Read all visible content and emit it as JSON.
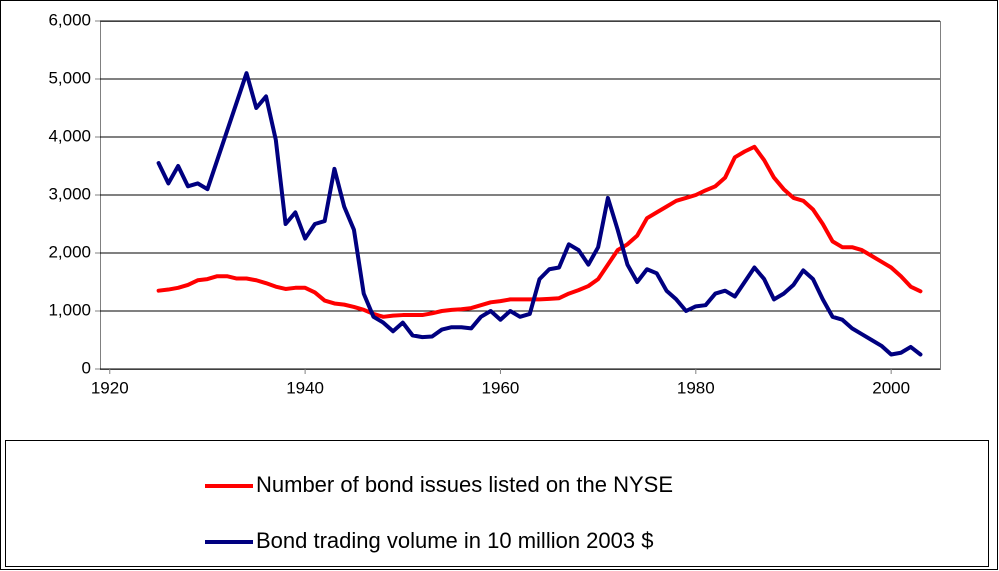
{
  "chart_data": {
    "type": "line",
    "x": [
      1925,
      1926,
      1927,
      1928,
      1929,
      1930,
      1931,
      1932,
      1933,
      1934,
      1935,
      1936,
      1937,
      1938,
      1939,
      1940,
      1941,
      1942,
      1943,
      1944,
      1945,
      1946,
      1947,
      1948,
      1949,
      1950,
      1951,
      1952,
      1953,
      1954,
      1955,
      1956,
      1957,
      1958,
      1959,
      1960,
      1961,
      1962,
      1963,
      1964,
      1965,
      1966,
      1967,
      1968,
      1969,
      1970,
      1971,
      1972,
      1973,
      1974,
      1975,
      1976,
      1977,
      1978,
      1979,
      1980,
      1981,
      1982,
      1983,
      1984,
      1985,
      1986,
      1987,
      1988,
      1989,
      1990,
      1991,
      1992,
      1993,
      1994,
      1995,
      1996,
      1997,
      1998,
      1999,
      2000,
      2001,
      2002,
      2003
    ],
    "series": [
      {
        "name": "Number of bond issues listed on the NYSE",
        "color": "#ff0000",
        "values": [
          1350,
          1370,
          1400,
          1450,
          1530,
          1550,
          1600,
          1600,
          1560,
          1560,
          1530,
          1480,
          1420,
          1380,
          1400,
          1400,
          1320,
          1180,
          1130,
          1110,
          1070,
          1020,
          950,
          900,
          920,
          930,
          930,
          930,
          960,
          1000,
          1020,
          1030,
          1050,
          1100,
          1150,
          1170,
          1200,
          1200,
          1200,
          1200,
          1210,
          1220,
          1300,
          1360,
          1430,
          1550,
          1800,
          2050,
          2150,
          2300,
          2600,
          2700,
          2800,
          2900,
          2950,
          3000,
          3080,
          3150,
          3300,
          3650,
          3750,
          3830,
          3600,
          3300,
          3100,
          2950,
          2900,
          2750,
          2500,
          2200,
          2100,
          2100,
          2050,
          1950,
          1850,
          1750,
          1600,
          1420,
          1340
        ]
      },
      {
        "name": "Bond trading volume in 10 million 2003 $",
        "color": "#000080",
        "values": [
          3550,
          3200,
          3500,
          3150,
          3200,
          3100,
          3600,
          4100,
          4600,
          5100,
          4500,
          4700,
          3950,
          2500,
          2700,
          2250,
          2500,
          2550,
          3450,
          2800,
          2400,
          1300,
          900,
          800,
          650,
          800,
          580,
          550,
          560,
          680,
          720,
          720,
          700,
          900,
          1000,
          850,
          1000,
          900,
          950,
          1550,
          1720,
          1750,
          2150,
          2050,
          1800,
          2100,
          2950,
          2400,
          1800,
          1500,
          1720,
          1650,
          1350,
          1200,
          1000,
          1080,
          1100,
          1300,
          1350,
          1250,
          1500,
          1750,
          1550,
          1200,
          1300,
          1450,
          1700,
          1550,
          1200,
          900,
          850,
          700,
          600,
          500,
          400,
          250,
          280,
          380,
          250
        ]
      }
    ],
    "xlim": [
      1919,
      2005
    ],
    "xticks": [
      1920,
      1940,
      1960,
      1980,
      2000
    ],
    "ylim": [
      0,
      6000
    ],
    "yticks": [
      0,
      {
        "value": 1000,
        "label": "1,000"
      },
      {
        "value": 2000,
        "label": "2,000"
      },
      {
        "value": 3000,
        "label": "3,000"
      },
      {
        "value": 4000,
        "label": "4,000"
      },
      {
        "value": 5000,
        "label": "5,000"
      },
      {
        "value": 6000,
        "label": "6,000"
      }
    ],
    "grid": true,
    "legend": "bottom"
  }
}
